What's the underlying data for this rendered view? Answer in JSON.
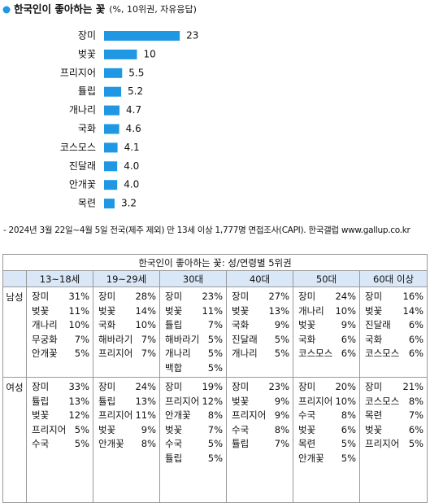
{
  "chart_data": {
    "type": "bar",
    "orientation": "horizontal",
    "title": "한국인이 좋아하는 꽃",
    "subtitle": "(%, 10위권, 자유응답)",
    "categories": [
      "장미",
      "벚꽃",
      "프리지어",
      "튤립",
      "개나리",
      "국화",
      "코스모스",
      "진달래",
      "안개꽃",
      "목련"
    ],
    "values": [
      23,
      10,
      5.5,
      5.2,
      4.7,
      4.6,
      4.1,
      4.0,
      4.0,
      3.2
    ],
    "value_labels": [
      "23",
      "10",
      "5.5",
      "5.2",
      "4.7",
      "4.6",
      "4.1",
      "4.0",
      "4.0",
      "3.2"
    ],
    "color": "#1f97e3"
  },
  "note": "- 2024년 3월 22일~4월 5일 전국(제주 제외) 만 13세 이상 1,777명 면접조사(CAPI). 한국갤럽 www.gallup.co.kr",
  "table": {
    "title": "한국인이 좋아하는 꽃: 성/연령별 5위권",
    "columns": [
      "13~18세",
      "19~29세",
      "30대",
      "40대",
      "50대",
      "60대 이상"
    ],
    "rows": [
      {
        "label": "남성",
        "cells": [
          [
            [
              "장미",
              "31%"
            ],
            [
              "벚꽃",
              "11%"
            ],
            [
              "개나리",
              "10%"
            ],
            [
              "무궁화",
              "7%"
            ],
            [
              "안개꽃",
              "5%"
            ]
          ],
          [
            [
              "장미",
              "28%"
            ],
            [
              "벚꽃",
              "14%"
            ],
            [
              "국화",
              "10%"
            ],
            [
              "해바라기",
              "7%"
            ],
            [
              "프리지어",
              "7%"
            ]
          ],
          [
            [
              "장미",
              "23%"
            ],
            [
              "벚꽃",
              "11%"
            ],
            [
              "튤립",
              "7%"
            ],
            [
              "해바라기",
              "5%"
            ],
            [
              "개나리",
              "5%"
            ],
            [
              "백합",
              "5%"
            ]
          ],
          [
            [
              "장미",
              "27%"
            ],
            [
              "벚꽃",
              "13%"
            ],
            [
              "국화",
              "9%"
            ],
            [
              "진달래",
              "5%"
            ],
            [
              "개나리",
              "5%"
            ]
          ],
          [
            [
              "장미",
              "24%"
            ],
            [
              "개나리",
              "10%"
            ],
            [
              "벚꽃",
              "9%"
            ],
            [
              "국화",
              "6%"
            ],
            [
              "코스모스",
              "6%"
            ]
          ],
          [
            [
              "장미",
              "16%"
            ],
            [
              "벚꽃",
              "14%"
            ],
            [
              "진달래",
              "6%"
            ],
            [
              "국화",
              "6%"
            ],
            [
              "코스모스",
              "6%"
            ]
          ]
        ]
      },
      {
        "label": "여성",
        "cells": [
          [
            [
              "장미",
              "33%"
            ],
            [
              "튤립",
              "13%"
            ],
            [
              "벚꽃",
              "12%"
            ],
            [
              "프리지어",
              "5%"
            ],
            [
              "수국",
              "5%"
            ]
          ],
          [
            [
              "장미",
              "24%"
            ],
            [
              "튤립",
              "13%"
            ],
            [
              "프리지어",
              "11%"
            ],
            [
              "벚꽃",
              "9%"
            ],
            [
              "안개꽃",
              "8%"
            ]
          ],
          [
            [
              "장미",
              "19%"
            ],
            [
              "프리지어",
              "12%"
            ],
            [
              "안개꽃",
              "8%"
            ],
            [
              "벚꽃",
              "7%"
            ],
            [
              "수국",
              "5%"
            ],
            [
              "튤립",
              "5%"
            ]
          ],
          [
            [
              "장미",
              "23%"
            ],
            [
              "벚꽃",
              "9%"
            ],
            [
              "프리지어",
              "9%"
            ],
            [
              "수국",
              "8%"
            ],
            [
              "튤립",
              "7%"
            ]
          ],
          [
            [
              "장미",
              "20%"
            ],
            [
              "프리지어",
              "10%"
            ],
            [
              "수국",
              "8%"
            ],
            [
              "벚꽃",
              "6%"
            ],
            [
              "목련",
              "5%"
            ],
            [
              "안개꽃",
              "5%"
            ]
          ],
          [
            [
              "장미",
              "21%"
            ],
            [
              "코스모스",
              "8%"
            ],
            [
              "목련",
              "7%"
            ],
            [
              "벚꽃",
              "6%"
            ],
            [
              "프리지어",
              "5%"
            ]
          ]
        ]
      }
    ]
  }
}
